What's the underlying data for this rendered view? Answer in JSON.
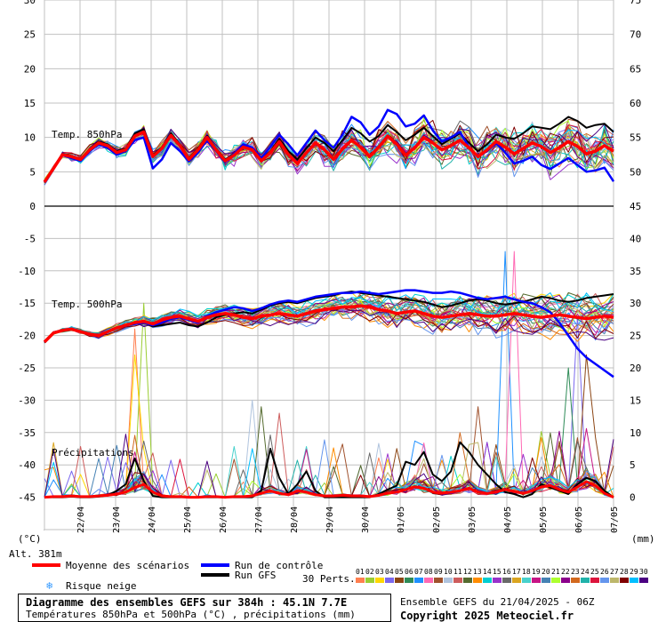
{
  "chart_data": {
    "type": "line",
    "title": "Diagramme des ensembles GEFS sur 384h : 45.1N 7.7E",
    "subtitle": "Températures 850hPa et 500hPa (°C) , précipitations (mm)",
    "dates": [
      "22/04",
      "23/04",
      "24/04",
      "25/04",
      "26/04",
      "27/04",
      "28/04",
      "29/04",
      "30/04",
      "01/05",
      "02/05",
      "03/05",
      "04/05",
      "05/05",
      "06/05",
      "07/05"
    ],
    "left_unit": "(°C)",
    "right_unit": "(mm)",
    "altitude_label": "Alt. 381m",
    "panel_labels": {
      "t850": "Temp. 850hPa",
      "t500": "Temp. 500hPa",
      "precip": "Précipitations"
    },
    "top_panel": {
      "left_ticks": [
        "30",
        "25",
        "20",
        "15",
        "10",
        "5",
        "0"
      ],
      "right_ticks": [
        "75",
        "70",
        "65",
        "60",
        "55",
        "50",
        "45"
      ],
      "ylim": [
        0,
        30
      ]
    },
    "bottom_panel": {
      "left_ticks": [
        "-5",
        "-10",
        "-15",
        "-20",
        "-25",
        "-30",
        "-35",
        "-40",
        "-45"
      ],
      "right_ticks": [
        "40",
        "35",
        "30",
        "25",
        "20",
        "15",
        "10",
        "5",
        "0"
      ],
      "ylim": [
        -50,
        0
      ]
    },
    "x_steps": 64,
    "t850": {
      "moyenne": [
        3.5,
        5.5,
        7.5,
        7.2,
        6.8,
        8.2,
        9.2,
        8.8,
        7.8,
        8.2,
        10.2,
        10.8,
        7.2,
        8.4,
        10.3,
        8.8,
        6.8,
        8.2,
        10.0,
        8.2,
        6.6,
        7.4,
        8.6,
        8.2,
        6.6,
        7.8,
        9.4,
        7.5,
        6.2,
        7.8,
        9.2,
        8.2,
        6.8,
        8.3,
        9.6,
        8.6,
        7.2,
        8.6,
        10.2,
        9.0,
        7.4,
        8.5,
        10.0,
        9.2,
        8.2,
        8.8,
        9.6,
        8.5,
        7.2,
        8.2,
        9.4,
        8.6,
        7.6,
        8.4,
        9.2,
        8.7,
        7.8,
        8.5,
        9.4,
        8.7,
        7.6,
        8.0,
        8.8,
        8.0
      ],
      "controle": [
        3.5,
        5.5,
        7.4,
        7.0,
        6.6,
        8.0,
        9.0,
        8.5,
        7.5,
        8.0,
        9.6,
        10.0,
        5.5,
        6.8,
        9.2,
        8.0,
        6.5,
        7.8,
        9.6,
        8.0,
        6.4,
        7.6,
        9.0,
        8.5,
        7.0,
        8.6,
        10.4,
        9.0,
        7.4,
        9.2,
        11.0,
        9.6,
        8.5,
        10.4,
        13.0,
        12.2,
        10.4,
        11.6,
        14.0,
        13.4,
        11.6,
        12.0,
        13.2,
        11.0,
        9.4,
        10.0,
        10.8,
        8.6,
        7.2,
        8.0,
        9.2,
        7.8,
        6.2,
        6.6,
        7.2,
        6.0,
        5.4,
        6.2,
        7.0,
        6.0,
        5.0,
        5.2,
        5.6,
        3.6
      ],
      "gfs": [
        3.5,
        5.6,
        7.6,
        7.3,
        6.9,
        8.3,
        9.4,
        9.0,
        8.0,
        8.4,
        10.6,
        11.2,
        7.4,
        8.6,
        10.6,
        9.0,
        7.0,
        8.4,
        10.2,
        8.4,
        6.8,
        7.6,
        8.8,
        8.4,
        6.8,
        8.0,
        9.8,
        8.0,
        6.8,
        8.4,
        10.0,
        9.2,
        8.0,
        9.6,
        11.4,
        10.6,
        9.4,
        10.2,
        11.8,
        10.8,
        9.6,
        10.4,
        11.4,
        10.2,
        9.0,
        9.8,
        10.6,
        9.2,
        8.0,
        9.0,
        10.4,
        10.0,
        9.8,
        10.6,
        11.6,
        11.4,
        11.2,
        12.0,
        13.0,
        12.4,
        11.4,
        11.8,
        12.0,
        10.8
      ]
    },
    "t500": {
      "moyenne": [
        -21.0,
        -19.6,
        -19.2,
        -19.0,
        -19.4,
        -19.8,
        -20.0,
        -19.4,
        -18.8,
        -18.4,
        -18.0,
        -17.8,
        -18.2,
        -17.6,
        -17.2,
        -17.0,
        -17.4,
        -17.8,
        -17.2,
        -16.8,
        -16.6,
        -16.8,
        -17.2,
        -17.4,
        -17.0,
        -16.8,
        -16.6,
        -16.8,
        -17.0,
        -16.6,
        -16.2,
        -16.0,
        -15.8,
        -15.6,
        -15.6,
        -15.4,
        -15.6,
        -16.0,
        -16.2,
        -16.6,
        -16.4,
        -16.2,
        -16.6,
        -17.0,
        -17.2,
        -17.0,
        -16.8,
        -16.6,
        -16.8,
        -17.0,
        -17.0,
        -16.8,
        -16.6,
        -16.8,
        -17.0,
        -17.2,
        -17.0,
        -16.8,
        -17.0,
        -17.2,
        -17.4,
        -17.2,
        -17.0,
        -17.2
      ],
      "controle": [
        -21.0,
        -19.6,
        -19.2,
        -19.0,
        -19.4,
        -19.8,
        -20.0,
        -19.4,
        -18.8,
        -18.4,
        -18.2,
        -18.0,
        -18.4,
        -18.0,
        -17.4,
        -17.2,
        -17.6,
        -18.0,
        -17.0,
        -16.4,
        -16.0,
        -15.6,
        -15.8,
        -16.2,
        -15.8,
        -15.2,
        -14.8,
        -14.6,
        -14.8,
        -14.4,
        -14.0,
        -13.8,
        -13.6,
        -13.4,
        -13.4,
        -13.2,
        -13.4,
        -13.6,
        -13.4,
        -13.2,
        -13.0,
        -13.0,
        -13.2,
        -13.4,
        -13.4,
        -13.2,
        -13.4,
        -13.8,
        -14.2,
        -14.4,
        -14.2,
        -14.0,
        -14.4,
        -14.8,
        -15.0,
        -15.6,
        -16.4,
        -18.0,
        -20.0,
        -22.0,
        -23.4,
        -24.4,
        -25.4,
        -26.4
      ],
      "gfs": [
        -21.0,
        -19.6,
        -19.2,
        -19.0,
        -19.4,
        -19.8,
        -20.0,
        -19.4,
        -18.8,
        -18.4,
        -18.2,
        -18.0,
        -18.6,
        -18.4,
        -18.2,
        -18.0,
        -18.4,
        -18.6,
        -18.0,
        -17.2,
        -16.8,
        -16.6,
        -16.4,
        -16.6,
        -16.0,
        -15.4,
        -15.0,
        -14.8,
        -15.0,
        -14.6,
        -14.2,
        -14.0,
        -13.8,
        -13.4,
        -13.2,
        -13.4,
        -13.6,
        -13.8,
        -14.0,
        -14.2,
        -14.4,
        -14.6,
        -14.8,
        -15.2,
        -15.6,
        -15.4,
        -15.0,
        -14.6,
        -14.4,
        -14.6,
        -15.0,
        -15.2,
        -15.0,
        -14.8,
        -14.4,
        -14.0,
        -14.2,
        -14.6,
        -14.8,
        -14.6,
        -14.2,
        -14.0,
        -13.8,
        -13.6
      ]
    },
    "precip": {
      "moyenne": [
        0.0,
        0.1,
        0.1,
        0.2,
        0.1,
        0.1,
        0.2,
        0.3,
        0.5,
        0.8,
        1.5,
        2.0,
        0.8,
        0.2,
        0.1,
        0.1,
        0.0,
        0.0,
        0.1,
        0.1,
        0.0,
        0.1,
        0.1,
        0.2,
        0.6,
        1.0,
        0.6,
        0.4,
        1.0,
        0.8,
        0.4,
        0.2,
        0.2,
        0.3,
        0.2,
        0.2,
        0.1,
        0.3,
        0.6,
        0.8,
        1.2,
        1.6,
        1.4,
        0.8,
        0.6,
        0.8,
        1.0,
        1.4,
        0.8,
        0.6,
        0.8,
        1.2,
        0.9,
        0.6,
        1.0,
        1.6,
        1.8,
        1.2,
        0.8,
        1.6,
        2.4,
        1.8,
        0.6,
        0.0
      ],
      "gfs": [
        0.0,
        0.0,
        0.0,
        0.1,
        0.0,
        0.0,
        0.1,
        0.3,
        1.0,
        2.0,
        6.0,
        2.5,
        0.2,
        0.0,
        0.0,
        0.0,
        0.0,
        0.0,
        0.0,
        0.0,
        0.0,
        0.0,
        0.0,
        0.0,
        1.0,
        7.5,
        3.0,
        0.5,
        2.0,
        4.0,
        1.0,
        0.0,
        0.0,
        0.0,
        0.0,
        0.0,
        0.0,
        0.5,
        1.2,
        1.8,
        5.5,
        5.0,
        7.0,
        3.5,
        2.5,
        4.0,
        8.5,
        7.0,
        5.0,
        3.5,
        2.0,
        0.8,
        0.5,
        0.0,
        0.5,
        2.0,
        1.5,
        1.0,
        0.5,
        2.0,
        3.0,
        2.5,
        1.0,
        0.0
      ],
      "peaks_ens": [
        {
          "i": 10,
          "v": 26
        },
        {
          "i": 11,
          "v": 30
        },
        {
          "i": 10,
          "v": 22
        },
        {
          "i": 59,
          "v": 28
        },
        {
          "i": 60,
          "v": 22
        },
        {
          "i": 58,
          "v": 20
        },
        {
          "i": 51,
          "v": 38
        },
        {
          "i": 52,
          "v": 38
        },
        {
          "i": 48,
          "v": 14
        },
        {
          "i": 23,
          "v": 15
        },
        {
          "i": 26,
          "v": 13
        },
        {
          "i": 24,
          "v": 14
        }
      ]
    },
    "legend": {
      "moyenne": "Moyenne des scénarios",
      "controle": "Run de contrôle",
      "gfs": "Run GFS",
      "neige": "Risque neige",
      "perts_label": "30 Perts.",
      "pert_numbers": [
        "01",
        "02",
        "03",
        "04",
        "05",
        "06",
        "07",
        "08",
        "09",
        "10",
        "11",
        "12",
        "13",
        "14",
        "15",
        "16",
        "17",
        "18",
        "19",
        "20",
        "21",
        "22",
        "23",
        "24",
        "25",
        "26",
        "27",
        "28",
        "29",
        "30"
      ]
    },
    "colors": {
      "moyenne": "#ff0000",
      "controle": "#0000ff",
      "gfs": "#000000",
      "grid": "#c0c0c0",
      "snow": "#3399ff",
      "perts": [
        "#ff7f50",
        "#9acd32",
        "#ffd700",
        "#7b68ee",
        "#8b4513",
        "#2e8b57",
        "#1e90ff",
        "#ff69b4",
        "#a0522d",
        "#b0c4de",
        "#cd5c5c",
        "#556b2f",
        "#ff8c00",
        "#00ced1",
        "#9932cc",
        "#696969",
        "#daa520",
        "#48d1cc",
        "#c71585",
        "#4682b4",
        "#adff2f",
        "#8b008b",
        "#d2691e",
        "#20b2aa",
        "#dc143c",
        "#6495ed",
        "#bdb76b",
        "#800000",
        "#00bfff",
        "#4b0082"
      ]
    }
  },
  "footer": {
    "line1": "Diagramme des ensembles GEFS sur 384h : 45.1N 7.7E",
    "line2": "Températures 850hPa et 500hPa (°C) , précipitations (mm)",
    "ensemble": "Ensemble GEFS du 21/04/2025 - 06Z",
    "copyright": "Copyright 2025 Meteociel.fr"
  }
}
